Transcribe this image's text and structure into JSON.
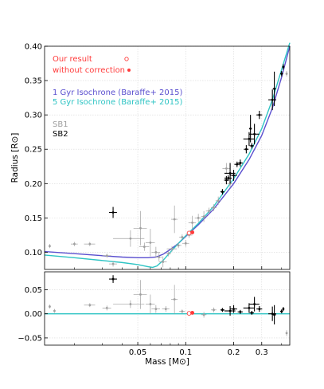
{
  "chart_data": {
    "type": "scatter",
    "x_scale": "log",
    "xlabel": "Mass [M⊙]",
    "x_ticks": [
      {
        "value": 0.05,
        "label": "0.05"
      },
      {
        "value": 0.1,
        "label": "0.1"
      },
      {
        "value": 0.2,
        "label": "0.2"
      },
      {
        "value": 0.3,
        "label": "0.3"
      }
    ],
    "xlim": [
      0.013,
      0.45
    ],
    "grid": true,
    "legend_position": "top-left",
    "colors": {
      "our_result": "#ff3b3b",
      "iso_1gyr": "#5a4fcf",
      "iso_5gyr": "#2ec4c4",
      "sb1": "#a0a0a0",
      "sb2": "#000000"
    },
    "legend": {
      "our_result": "Our result",
      "without_correction": "without correction",
      "iso_1gyr": "1 Gyr Isochrone (Baraffe+ 2015)",
      "iso_5gyr": "5 Gyr Isochrone (Baraffe+ 2015)",
      "sb1": "SB1",
      "sb2": "SB2"
    },
    "top_panel": {
      "ylabel": "Radius [R⊙]",
      "ylim": [
        0.075,
        0.4
      ],
      "y_ticks": [
        {
          "value": 0.1,
          "label": "0.10"
        },
        {
          "value": 0.15,
          "label": "0.15"
        },
        {
          "value": 0.2,
          "label": "0.20"
        },
        {
          "value": 0.25,
          "label": "0.25"
        },
        {
          "value": 0.3,
          "label": "0.30"
        },
        {
          "value": 0.35,
          "label": "0.35"
        },
        {
          "value": 0.4,
          "label": "0.40"
        }
      ],
      "series": [
        {
          "name": "1 Gyr Isochrone (Baraffe+ 2015)",
          "kind": "line",
          "x": [
            0.013,
            0.02,
            0.03,
            0.04,
            0.05,
            0.058,
            0.065,
            0.072,
            0.08,
            0.09,
            0.1,
            0.12,
            0.15,
            0.2,
            0.25,
            0.3,
            0.35,
            0.4,
            0.45
          ],
          "y": [
            0.101,
            0.098,
            0.095,
            0.093,
            0.092,
            0.092,
            0.093,
            0.097,
            0.104,
            0.113,
            0.123,
            0.14,
            0.163,
            0.2,
            0.235,
            0.27,
            0.31,
            0.355,
            0.4
          ]
        },
        {
          "name": "5 Gyr Isochrone (Baraffe+ 2015)",
          "kind": "line",
          "x": [
            0.013,
            0.02,
            0.03,
            0.04,
            0.05,
            0.058,
            0.062,
            0.066,
            0.072,
            0.08,
            0.09,
            0.1,
            0.12,
            0.15,
            0.2,
            0.25,
            0.3,
            0.35,
            0.4,
            0.45
          ],
          "y": [
            0.096,
            0.092,
            0.088,
            0.085,
            0.082,
            0.079,
            0.078,
            0.08,
            0.088,
            0.1,
            0.113,
            0.124,
            0.142,
            0.167,
            0.207,
            0.243,
            0.28,
            0.322,
            0.366,
            0.405
          ]
        },
        {
          "name": "SB1",
          "kind": "points",
          "points": [
            {
              "x": 0.014,
              "y": 0.109,
              "xe": 0,
              "ye": 0.003
            },
            {
              "x": 0.02,
              "y": 0.112,
              "xe": 0.001,
              "ye": 0.003
            },
            {
              "x": 0.025,
              "y": 0.112,
              "xe": 0.002,
              "ye": 0.003
            },
            {
              "x": 0.032,
              "y": 0.095,
              "xe": 0.002,
              "ye": 0.003
            },
            {
              "x": 0.035,
              "y": 0.083,
              "xe": 0.002,
              "ye": 0.004
            },
            {
              "x": 0.045,
              "y": 0.12,
              "xe": 0.01,
              "ye": 0.012
            },
            {
              "x": 0.052,
              "y": 0.135,
              "xe": 0.005,
              "ye": 0.025
            },
            {
              "x": 0.055,
              "y": 0.108,
              "xe": 0.004,
              "ye": 0.006
            },
            {
              "x": 0.06,
              "y": 0.114,
              "xe": 0.004,
              "ye": 0.02
            },
            {
              "x": 0.065,
              "y": 0.1,
              "xe": 0.004,
              "ye": 0.008
            },
            {
              "x": 0.068,
              "y": 0.093,
              "xe": 0.003,
              "ye": 0.006
            },
            {
              "x": 0.072,
              "y": 0.086,
              "xe": 0.004,
              "ye": 0.008
            },
            {
              "x": 0.078,
              "y": 0.098,
              "xe": 0.003,
              "ye": 0.004
            },
            {
              "x": 0.082,
              "y": 0.105,
              "xe": 0.006,
              "ye": 0.004
            },
            {
              "x": 0.085,
              "y": 0.148,
              "xe": 0.004,
              "ye": 0.02
            },
            {
              "x": 0.09,
              "y": 0.11,
              "xe": 0.004,
              "ye": 0.004
            },
            {
              "x": 0.095,
              "y": 0.122,
              "xe": 0.004,
              "ye": 0.004
            },
            {
              "x": 0.1,
              "y": 0.113,
              "xe": 0.005,
              "ye": 0.005
            },
            {
              "x": 0.105,
              "y": 0.125,
              "xe": 0.005,
              "ye": 0.004
            },
            {
              "x": 0.11,
              "y": 0.143,
              "xe": 0.006,
              "ye": 0.01
            },
            {
              "x": 0.12,
              "y": 0.15,
              "xe": 0.006,
              "ye": 0.006
            },
            {
              "x": 0.13,
              "y": 0.152,
              "xe": 0.005,
              "ye": 0.008
            },
            {
              "x": 0.14,
              "y": 0.16,
              "xe": 0.006,
              "ye": 0.005
            },
            {
              "x": 0.15,
              "y": 0.165,
              "xe": 0.006,
              "ye": 0.005
            },
            {
              "x": 0.16,
              "y": 0.175,
              "xe": 0.006,
              "ye": 0.006
            },
            {
              "x": 0.18,
              "y": 0.222,
              "xe": 0.01,
              "ye": 0.008
            },
            {
              "x": 0.19,
              "y": 0.2,
              "xe": 0.008,
              "ye": 0.006
            },
            {
              "x": 0.43,
              "y": 0.36,
              "xe": 0,
              "ye": 0.004
            }
          ]
        },
        {
          "name": "SB2",
          "kind": "points",
          "points": [
            {
              "x": 0.035,
              "y": 0.158,
              "xe": 0.002,
              "ye": 0.008
            },
            {
              "x": 0.17,
              "y": 0.188,
              "xe": 0.005,
              "ye": 0.004
            },
            {
              "x": 0.18,
              "y": 0.205,
              "xe": 0.006,
              "ye": 0.006
            },
            {
              "x": 0.185,
              "y": 0.208,
              "xe": 0.01,
              "ye": 0.004
            },
            {
              "x": 0.19,
              "y": 0.215,
              "xe": 0.015,
              "ye": 0.015
            },
            {
              "x": 0.2,
              "y": 0.212,
              "xe": 0.01,
              "ye": 0.008
            },
            {
              "x": 0.21,
              "y": 0.228,
              "xe": 0.008,
              "ye": 0.004
            },
            {
              "x": 0.22,
              "y": 0.23,
              "xe": 0.008,
              "ye": 0.005
            },
            {
              "x": 0.24,
              "y": 0.25,
              "xe": 0.008,
              "ye": 0.006
            },
            {
              "x": 0.25,
              "y": 0.265,
              "xe": 0.02,
              "ye": 0.01
            },
            {
              "x": 0.255,
              "y": 0.28,
              "xe": 0.005,
              "ye": 0.02
            },
            {
              "x": 0.26,
              "y": 0.255,
              "xe": 0.008,
              "ye": 0.004
            },
            {
              "x": 0.27,
              "y": 0.272,
              "xe": 0.02,
              "ye": 0.015
            },
            {
              "x": 0.29,
              "y": 0.3,
              "xe": 0.012,
              "ye": 0.006
            },
            {
              "x": 0.35,
              "y": 0.322,
              "xe": 0.02,
              "ye": 0.015
            },
            {
              "x": 0.36,
              "y": 0.338,
              "xe": 0.008,
              "ye": 0.025
            },
            {
              "x": 0.4,
              "y": 0.36,
              "xe": 0.008,
              "ye": 0.004
            },
            {
              "x": 0.41,
              "y": 0.37,
              "xe": 0.005,
              "ye": 0.004
            }
          ]
        },
        {
          "name": "Our result",
          "kind": "marker-open",
          "points": [
            {
              "x": 0.105,
              "y": 0.128
            }
          ]
        },
        {
          "name": "without correction",
          "kind": "marker-filled",
          "points": [
            {
              "x": 0.11,
              "y": 0.129
            }
          ]
        }
      ]
    },
    "bottom_panel": {
      "ylim": [
        -0.065,
        0.087
      ],
      "y_ticks": [
        {
          "value": 0.05,
          "label": "0.05"
        },
        {
          "value": 0.0,
          "label": "0.00"
        },
        {
          "value": -0.05,
          "label": "−0.05"
        }
      ],
      "zero_line": 0.0,
      "series": [
        {
          "name": "SB1",
          "kind": "points",
          "points": [
            {
              "x": 0.014,
              "y": 0.015,
              "xe": 0,
              "ye": 0.004
            },
            {
              "x": 0.015,
              "y": 0.006,
              "xe": 0,
              "ye": 0.004
            },
            {
              "x": 0.025,
              "y": 0.018,
              "xe": 0.002,
              "ye": 0.004
            },
            {
              "x": 0.032,
              "y": 0.012,
              "xe": 0.002,
              "ye": 0.005
            },
            {
              "x": 0.045,
              "y": 0.02,
              "xe": 0.01,
              "ye": 0.008
            },
            {
              "x": 0.052,
              "y": 0.04,
              "xe": 0.005,
              "ye": 0.03
            },
            {
              "x": 0.06,
              "y": 0.02,
              "xe": 0.004,
              "ye": 0.02
            },
            {
              "x": 0.065,
              "y": 0.01,
              "xe": 0.004,
              "ye": 0.008
            },
            {
              "x": 0.075,
              "y": 0.01,
              "xe": 0.004,
              "ye": 0.006
            },
            {
              "x": 0.085,
              "y": 0.03,
              "xe": 0.004,
              "ye": 0.03
            },
            {
              "x": 0.095,
              "y": 0.005,
              "xe": 0.004,
              "ye": 0.004
            },
            {
              "x": 0.13,
              "y": -0.002,
              "xe": 0.005,
              "ye": 0.006
            },
            {
              "x": 0.15,
              "y": 0.008,
              "xe": 0.006,
              "ye": 0.005
            },
            {
              "x": 0.43,
              "y": -0.04,
              "xe": 0,
              "ye": 0.006
            }
          ]
        },
        {
          "name": "SB2",
          "kind": "points",
          "points": [
            {
              "x": 0.035,
              "y": 0.072,
              "xe": 0.002,
              "ye": 0.008
            },
            {
              "x": 0.17,
              "y": 0.008,
              "xe": 0.005,
              "ye": 0.004
            },
            {
              "x": 0.19,
              "y": 0.006,
              "xe": 0.015,
              "ye": 0.01
            },
            {
              "x": 0.2,
              "y": 0.01,
              "xe": 0.01,
              "ye": 0.008
            },
            {
              "x": 0.22,
              "y": 0.004,
              "xe": 0.008,
              "ye": 0.004
            },
            {
              "x": 0.25,
              "y": 0.012,
              "xe": 0.02,
              "ye": 0.01
            },
            {
              "x": 0.26,
              "y": 0.002,
              "xe": 0.008,
              "ye": 0.004
            },
            {
              "x": 0.27,
              "y": 0.02,
              "xe": 0.02,
              "ye": 0.015
            },
            {
              "x": 0.29,
              "y": 0.01,
              "xe": 0.012,
              "ye": 0.006
            },
            {
              "x": 0.35,
              "y": 0.0,
              "xe": 0.02,
              "ye": 0.015
            },
            {
              "x": 0.36,
              "y": -0.002,
              "xe": 0.008,
              "ye": 0.02
            },
            {
              "x": 0.4,
              "y": 0.005,
              "xe": 0.008,
              "ye": 0.004
            },
            {
              "x": 0.41,
              "y": 0.01,
              "xe": 0.005,
              "ye": 0.004
            }
          ]
        },
        {
          "name": "Our result",
          "kind": "marker-open",
          "points": [
            {
              "x": 0.105,
              "y": 0.001
            }
          ]
        },
        {
          "name": "without correction",
          "kind": "marker-filled",
          "points": [
            {
              "x": 0.11,
              "y": 0.002
            }
          ]
        }
      ]
    }
  }
}
